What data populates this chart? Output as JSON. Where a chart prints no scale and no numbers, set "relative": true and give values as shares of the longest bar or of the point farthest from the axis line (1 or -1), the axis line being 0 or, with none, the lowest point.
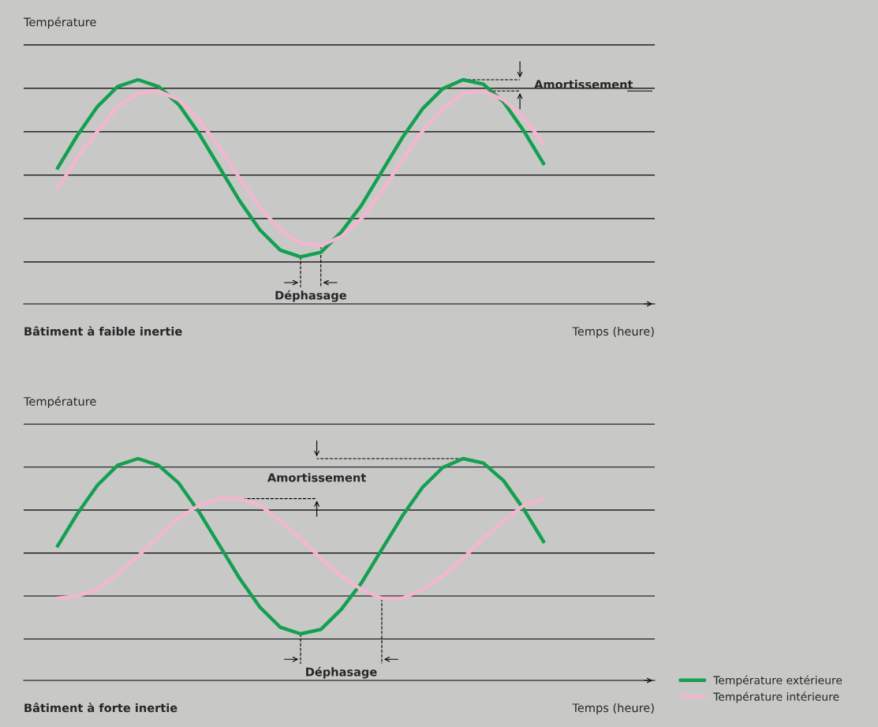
{
  "chart_data": [
    {
      "type": "line",
      "title": "Bâtiment à faible inertie",
      "xlabel": "Temps (heure)",
      "ylabel": "Température",
      "relative": true,
      "grid": "y",
      "categories": [
        null,
        null,
        null,
        null,
        null,
        null,
        null,
        null,
        null,
        null,
        null,
        null,
        null,
        null,
        null,
        null,
        null,
        null,
        null,
        null,
        null,
        null,
        null,
        null,
        null
      ],
      "series": [
        {
          "color": "#14a050",
          "values": [
            0.6,
            0.75,
            0.88,
            0.97,
            1.0,
            0.97,
            0.89,
            0.76,
            0.61,
            0.46,
            0.33,
            0.24,
            0.21,
            0.23,
            0.32,
            0.44,
            0.59,
            0.74,
            0.87,
            0.96,
            1.0,
            0.98,
            0.9,
            0.77,
            0.62
          ]
        },
        {
          "color": "#f4b6cf",
          "values": [
            0.51,
            0.65,
            0.77,
            0.88,
            0.94,
            0.95,
            0.91,
            0.82,
            0.7,
            0.56,
            0.43,
            0.33,
            0.27,
            0.26,
            0.3,
            0.38,
            0.5,
            0.64,
            0.77,
            0.87,
            0.94,
            0.95,
            0.91,
            0.83,
            0.71
          ]
        }
      ],
      "annotations": [
        "Amortissement",
        "Déphasage"
      ]
    },
    {
      "type": "line",
      "title": "Bâtiment à forte inertie",
      "xlabel": "Temps (heure)",
      "ylabel": "Température",
      "relative": true,
      "grid": "y",
      "legend": "bottom right",
      "categories": [
        null,
        null,
        null,
        null,
        null,
        null,
        null,
        null,
        null,
        null,
        null,
        null,
        null,
        null,
        null,
        null,
        null,
        null,
        null,
        null,
        null,
        null,
        null,
        null,
        null
      ],
      "series": [
        {
          "name": "Température extérieure",
          "color": "#14a050",
          "values": [
            0.6,
            0.75,
            0.88,
            0.97,
            1.0,
            0.97,
            0.89,
            0.76,
            0.61,
            0.46,
            0.33,
            0.24,
            0.21,
            0.23,
            0.32,
            0.44,
            0.59,
            0.74,
            0.87,
            0.96,
            1.0,
            0.98,
            0.9,
            0.77,
            0.62
          ]
        },
        {
          "name": "Température intérieure",
          "color": "#f4b6cf",
          "values": [
            0.37,
            0.38,
            0.41,
            0.48,
            0.56,
            0.65,
            0.73,
            0.79,
            0.82,
            0.82,
            0.79,
            0.72,
            0.64,
            0.55,
            0.47,
            0.41,
            0.37,
            0.37,
            0.41,
            0.47,
            0.55,
            0.64,
            0.72,
            0.79,
            0.82
          ]
        }
      ],
      "annotations": [
        "Amortissement",
        "Déphasage"
      ]
    }
  ]
}
